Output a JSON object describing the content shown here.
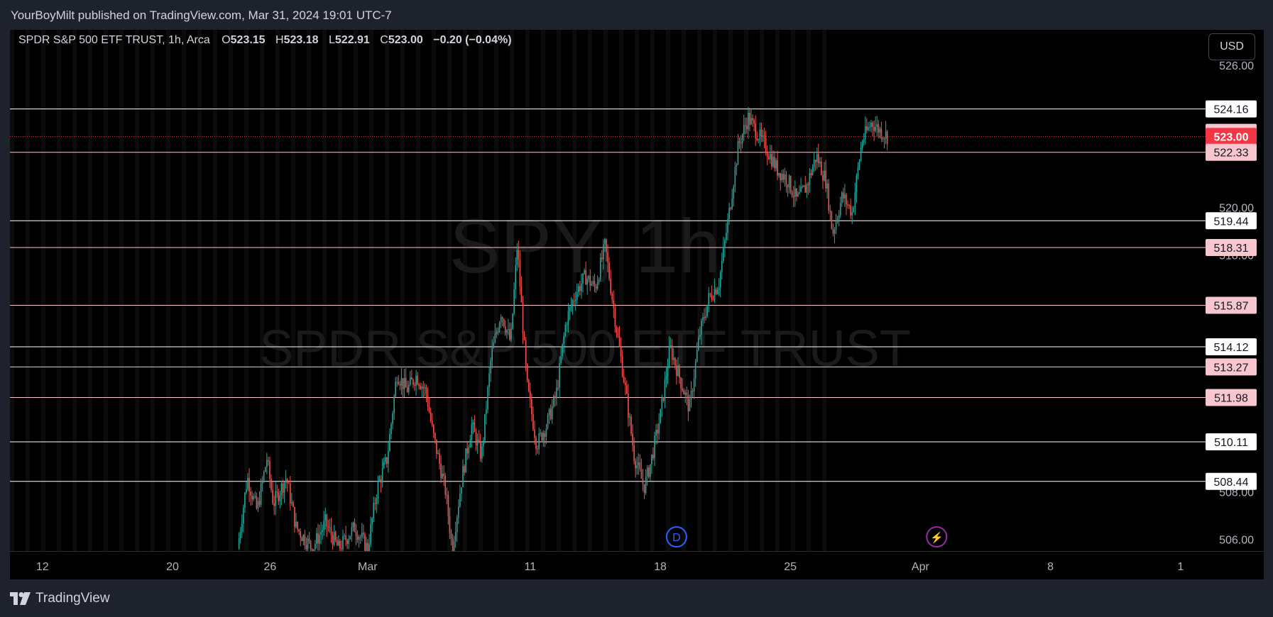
{
  "publisher_line": "YourBoyMilt published on TradingView.com, Mar 31, 2024 19:01 UTC-7",
  "brand": "TradingView",
  "currency_button": "USD",
  "legend": {
    "symbol": "SPDR S&P 500 ETF TRUST, 1h, Arca",
    "o_label": "O",
    "o": "523.15",
    "h_label": "H",
    "h": "523.18",
    "l_label": "L",
    "l": "522.91",
    "c_label": "C",
    "c": "523.00",
    "change": "−0.20 (−0.04%)"
  },
  "watermark": {
    "ticker": "SPY, 1h",
    "name": "SPDR S&P 500 ETF TRUST"
  },
  "colors": {
    "up": "#26a69a",
    "down": "#ef5350",
    "current_price": "#f23645",
    "pink_label": "#f7c6ce",
    "white_label": "#ffffff",
    "background": "#000000"
  },
  "events": [
    {
      "icon": "dividend-icon",
      "label": "D",
      "x_index": 20.5
    },
    {
      "icon": "lightning-icon",
      "label": "⚡",
      "x_index": 28.5
    }
  ],
  "chart_data": {
    "type": "candlestick",
    "interval": "1h",
    "ylim": [
      505.5,
      527.5
    ],
    "y_ticks": [
      "526.00",
      "520.00",
      "518.00",
      "508.00",
      "506.00"
    ],
    "x_ticks": [
      {
        "label": "12",
        "i": 1
      },
      {
        "label": "20",
        "i": 5
      },
      {
        "label": "26",
        "i": 8
      },
      {
        "label": "Mar",
        "i": 11
      },
      {
        "label": "11",
        "i": 16
      },
      {
        "label": "18",
        "i": 20
      },
      {
        "label": "25",
        "i": 24
      },
      {
        "label": "Apr",
        "i": 28
      },
      {
        "label": "8",
        "i": 32
      },
      {
        "label": "1",
        "i": 36
      }
    ],
    "x_range": [
      0,
      36.9
    ],
    "candle_path": [
      {
        "i": 7.0,
        "p": 505.6
      },
      {
        "i": 7.3,
        "p": 508.6
      },
      {
        "i": 7.6,
        "p": 507.2
      },
      {
        "i": 7.9,
        "p": 509.4
      },
      {
        "i": 8.1,
        "p": 507.5
      },
      {
        "i": 8.5,
        "p": 508.6
      },
      {
        "i": 8.8,
        "p": 506.5
      },
      {
        "i": 9.3,
        "p": 505.6
      },
      {
        "i": 9.7,
        "p": 506.7
      },
      {
        "i": 10.1,
        "p": 505.6
      },
      {
        "i": 10.6,
        "p": 506.5
      },
      {
        "i": 11.0,
        "p": 505.6
      },
      {
        "i": 11.3,
        "p": 508.2
      },
      {
        "i": 11.6,
        "p": 509.4
      },
      {
        "i": 11.9,
        "p": 513.0
      },
      {
        "i": 12.2,
        "p": 512.3
      },
      {
        "i": 12.5,
        "p": 512.9
      },
      {
        "i": 12.8,
        "p": 512.2
      },
      {
        "i": 13.0,
        "p": 510.5
      },
      {
        "i": 13.4,
        "p": 508.0
      },
      {
        "i": 13.6,
        "p": 505.6
      },
      {
        "i": 13.9,
        "p": 508.6
      },
      {
        "i": 14.2,
        "p": 510.8
      },
      {
        "i": 14.5,
        "p": 509.5
      },
      {
        "i": 14.8,
        "p": 513.7
      },
      {
        "i": 15.1,
        "p": 515.6
      },
      {
        "i": 15.4,
        "p": 514.3
      },
      {
        "i": 15.6,
        "p": 518.4
      },
      {
        "i": 15.9,
        "p": 512.5
      },
      {
        "i": 16.2,
        "p": 510.0
      },
      {
        "i": 16.5,
        "p": 510.8
      },
      {
        "i": 16.8,
        "p": 512.1
      },
      {
        "i": 17.1,
        "p": 515.2
      },
      {
        "i": 17.4,
        "p": 516.4
      },
      {
        "i": 17.7,
        "p": 517.1
      },
      {
        "i": 18.0,
        "p": 516.6
      },
      {
        "i": 18.3,
        "p": 518.4
      },
      {
        "i": 18.6,
        "p": 515.4
      },
      {
        "i": 18.9,
        "p": 512.6
      },
      {
        "i": 19.2,
        "p": 509.5
      },
      {
        "i": 19.5,
        "p": 508.2
      },
      {
        "i": 19.7,
        "p": 509.2
      },
      {
        "i": 20.0,
        "p": 511.2
      },
      {
        "i": 20.3,
        "p": 514.1
      },
      {
        "i": 20.6,
        "p": 512.8
      },
      {
        "i": 20.9,
        "p": 511.5
      },
      {
        "i": 21.2,
        "p": 514.6
      },
      {
        "i": 21.5,
        "p": 516.2
      },
      {
        "i": 21.8,
        "p": 516.8
      },
      {
        "i": 22.1,
        "p": 519.6
      },
      {
        "i": 22.4,
        "p": 522.6
      },
      {
        "i": 22.7,
        "p": 523.8
      },
      {
        "i": 23.0,
        "p": 523.1
      },
      {
        "i": 23.3,
        "p": 522.4
      },
      {
        "i": 23.6,
        "p": 521.6
      },
      {
        "i": 23.9,
        "p": 521.2
      },
      {
        "i": 24.2,
        "p": 520.3
      },
      {
        "i": 24.5,
        "p": 520.9
      },
      {
        "i": 24.8,
        "p": 522.2
      },
      {
        "i": 25.1,
        "p": 521.1
      },
      {
        "i": 25.3,
        "p": 518.9
      },
      {
        "i": 25.6,
        "p": 520.5
      },
      {
        "i": 25.9,
        "p": 519.8
      },
      {
        "i": 26.2,
        "p": 522.8
      },
      {
        "i": 26.5,
        "p": 523.6
      },
      {
        "i": 26.8,
        "p": 523.2
      },
      {
        "i": 27.0,
        "p": 523.0
      }
    ]
  },
  "price_lines": [
    {
      "price": 524.16,
      "label": "524.16",
      "style": "white"
    },
    {
      "price": 523.17,
      "label": "523.17",
      "style": "pink",
      "no_line": true
    },
    {
      "price": 523.0,
      "label": "523.00",
      "style": "current"
    },
    {
      "price": 522.33,
      "label": "522.33",
      "style": "pink"
    },
    {
      "price": 519.44,
      "label": "519.44",
      "style": "white"
    },
    {
      "price": 518.31,
      "label": "518.31",
      "style": "pink"
    },
    {
      "price": 515.87,
      "label": "515.87",
      "style": "pink"
    },
    {
      "price": 514.12,
      "label": "514.12",
      "style": "white"
    },
    {
      "price": 513.27,
      "label": "513.27",
      "style": "pink"
    },
    {
      "price": 511.98,
      "label": "511.98",
      "style": "pink"
    },
    {
      "price": 510.11,
      "label": "510.11",
      "style": "white"
    },
    {
      "price": 508.44,
      "label": "508.44",
      "style": "white"
    }
  ]
}
